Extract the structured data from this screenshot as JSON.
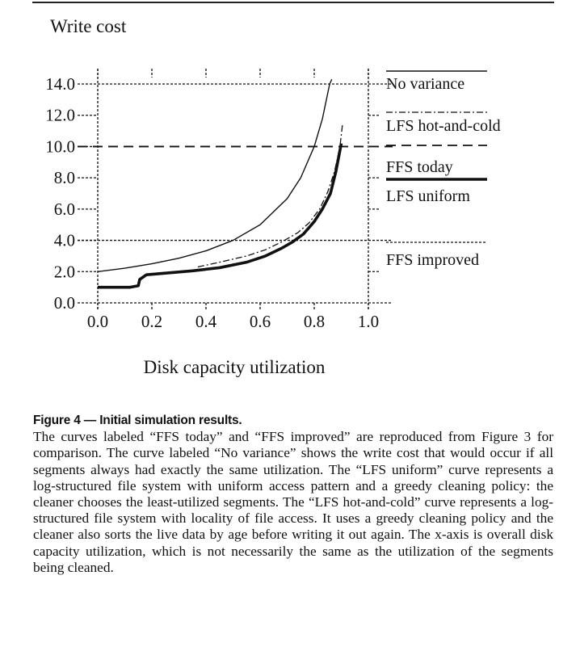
{
  "chart_data": {
    "type": "line",
    "title": "",
    "ylabel": "Write cost",
    "xlabel": "Disk capacity utilization",
    "xlim": [
      0,
      1.0
    ],
    "ylim": [
      0,
      14.0
    ],
    "x_ticks": [
      "0.0",
      "0.2",
      "0.4",
      "0.6",
      "0.8",
      "1.0"
    ],
    "y_ticks": [
      "0.0",
      "2.0",
      "4.0",
      "6.0",
      "8.0",
      "10.0",
      "12.0",
      "14.0"
    ],
    "grid": "dotted at y ticks",
    "legend_position": "right",
    "series": [
      {
        "name": "No variance",
        "style": "solid-thin",
        "x": [
          0,
          0.1,
          0.2,
          0.3,
          0.4,
          0.5,
          0.6,
          0.7,
          0.75,
          0.8,
          0.83,
          0.857,
          0.865
        ],
        "y": [
          2.0,
          2.22,
          2.5,
          2.86,
          3.33,
          4.0,
          5.0,
          6.67,
          8.0,
          10.0,
          11.76,
          14.0,
          14.3
        ]
      },
      {
        "name": "LFS hot-and-cold",
        "style": "dash-dot",
        "x": [
          0.37,
          0.45,
          0.55,
          0.62,
          0.68,
          0.74,
          0.78,
          0.82,
          0.85,
          0.875,
          0.895,
          0.905
        ],
        "y": [
          2.3,
          2.6,
          3.0,
          3.4,
          3.9,
          4.5,
          5.1,
          6.0,
          7.1,
          8.4,
          10.0,
          11.5
        ]
      },
      {
        "name": "FFS today",
        "style": "dashed",
        "x": [
          0,
          1.0
        ],
        "y": [
          10.0,
          10.0
        ]
      },
      {
        "name": "LFS uniform",
        "style": "solid-thick",
        "x": [
          0,
          0.12,
          0.15,
          0.155,
          0.18,
          0.25,
          0.35,
          0.45,
          0.55,
          0.62,
          0.68,
          0.72,
          0.76,
          0.8,
          0.83,
          0.86,
          0.88,
          0.9
        ],
        "y": [
          1.0,
          1.0,
          1.1,
          1.5,
          1.8,
          1.9,
          2.05,
          2.25,
          2.6,
          3.0,
          3.5,
          3.9,
          4.4,
          5.2,
          6.0,
          7.0,
          8.4,
          10.2
        ]
      },
      {
        "name": "FFS improved",
        "style": "dotted",
        "x": [
          0,
          1.0
        ],
        "y": [
          4.0,
          4.0
        ]
      }
    ]
  },
  "caption": {
    "title": "Figure 4 — Initial simulation results.",
    "body": "The curves labeled “FFS today” and “FFS improved” are reproduced from Figure 3 for comparison. The curve labeled “No variance” shows the write cost that would occur if all segments always had exactly the same utilization. The “LFS uniform” curve represents a log-structured file system with uniform access pattern and a greedy cleaning policy: the cleaner chooses the least-utilized segments. The “LFS hot-and-cold” curve represents a log-structured file system with locality of file access. It uses a greedy cleaning policy and the cleaner also sorts the live data by age before writing it out again. The x-axis is overall disk capacity utilization, which is not necessarily the same as the utilization of the segments being cleaned."
  }
}
